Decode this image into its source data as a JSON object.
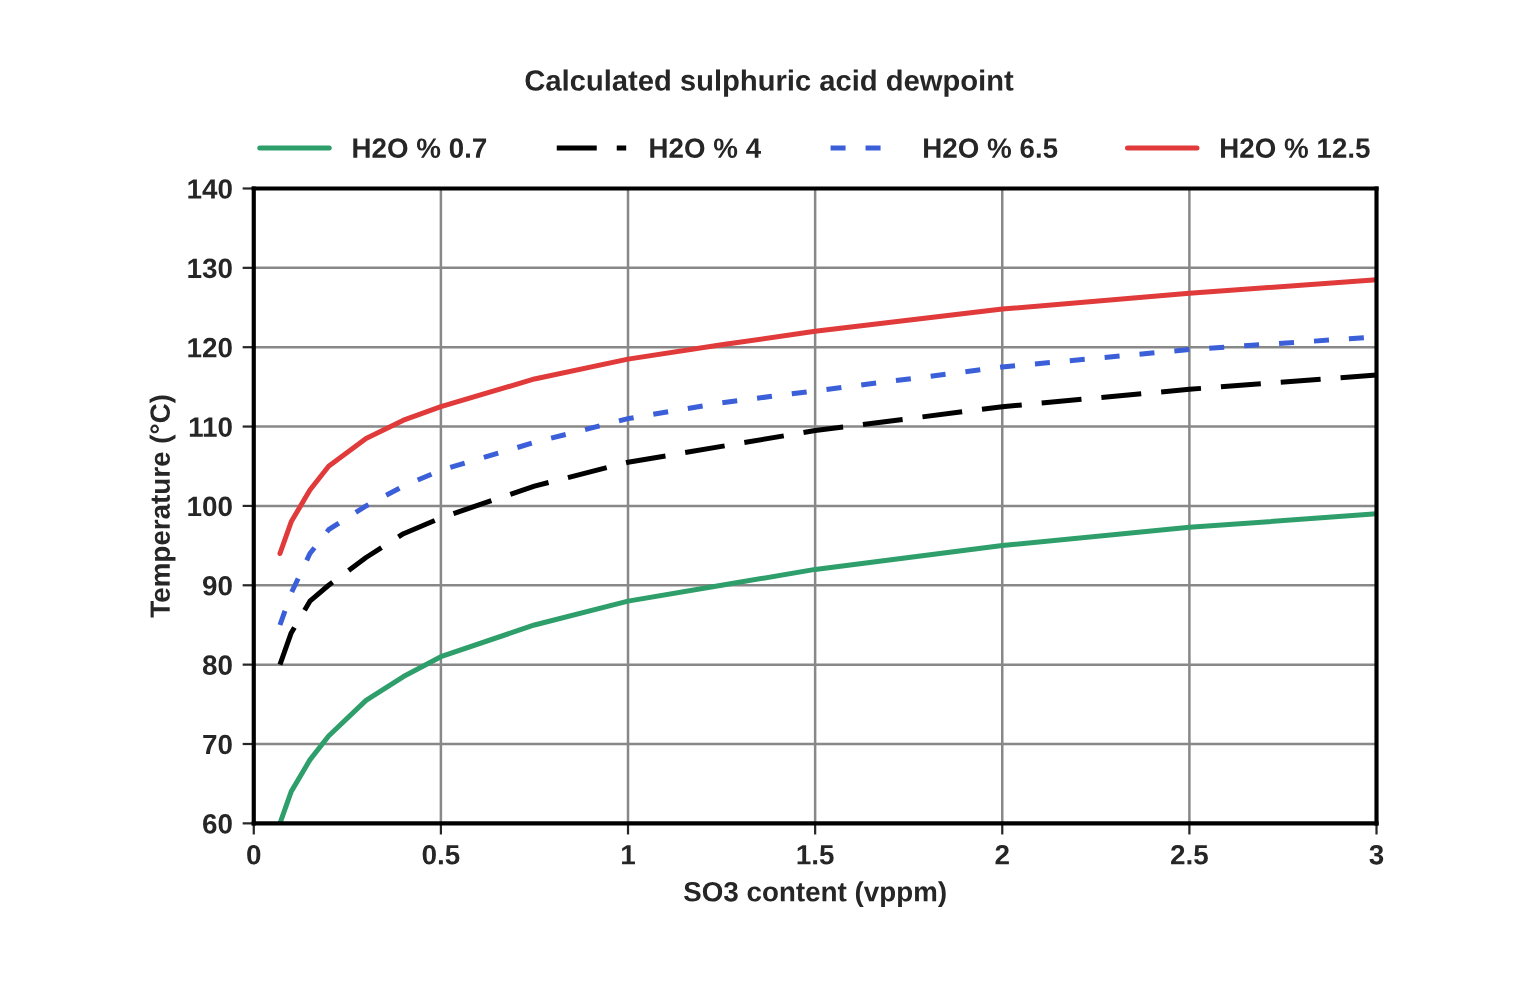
{
  "chart_data": {
    "type": "line",
    "title": "Calculated sulphuric acid dewpoint",
    "xlabel": "SO3 content (vppm)",
    "ylabel": "Temperature (°C)",
    "x": [
      0.07,
      0.1,
      0.15,
      0.2,
      0.3,
      0.4,
      0.5,
      0.75,
      1,
      1.25,
      1.5,
      2,
      2.5,
      3
    ],
    "series": [
      {
        "name": "H2O % 0.7",
        "color": "#2e9e6b",
        "line_style": "solid",
        "values": [
          60,
          64,
          68,
          71,
          75.5,
          78.5,
          81,
          85,
          88,
          90,
          92,
          95,
          97.3,
          99
        ]
      },
      {
        "name": "H2O % 4",
        "color": "#000000",
        "line_style": "dashed",
        "values": [
          80,
          84,
          88,
          90,
          93.5,
          96.5,
          98.5,
          102.5,
          105.5,
          107.5,
          109.5,
          112.5,
          114.7,
          116.5
        ]
      },
      {
        "name": "H2O % 6.5",
        "color": "#3b5fd9",
        "line_style": "dotted",
        "values": [
          85,
          89,
          94,
          97,
          100,
          102.5,
          104.5,
          108,
          111,
          113,
          114.5,
          117.5,
          119.7,
          121.3
        ]
      },
      {
        "name": "H2O % 12.5",
        "color": "#e03a3a",
        "line_style": "solid",
        "values": [
          94,
          98,
          102,
          105,
          108.5,
          110.8,
          112.5,
          116,
          118.5,
          120.3,
          122,
          124.8,
          126.8,
          128.5
        ]
      }
    ],
    "xlim": [
      0,
      3
    ],
    "xticks": [
      0,
      0.5,
      1,
      1.5,
      2,
      2.5,
      3
    ],
    "ylim": [
      60,
      140
    ],
    "yticks": [
      60,
      70,
      80,
      90,
      100,
      110,
      120,
      130,
      140
    ],
    "grid": true,
    "legend": "top",
    "marker": "none"
  }
}
